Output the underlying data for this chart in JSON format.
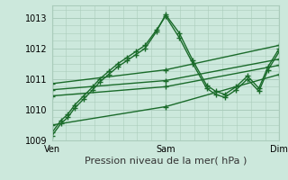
{
  "bg_color": "#cce8dc",
  "grid_color": "#aaccbb",
  "line_color": "#1a6b2a",
  "marker": "+",
  "markersize": 4,
  "linewidth": 1.0,
  "xlabel": "Pression niveau de la mer( hPa )",
  "xlabel_fontsize": 8,
  "tick_fontsize": 7,
  "ylim": [
    1009.0,
    1013.4
  ],
  "yticks": [
    1009,
    1010,
    1011,
    1012,
    1013
  ],
  "xtick_labels": [
    "Ven",
    "Sam",
    "Dim"
  ],
  "xtick_positions": [
    0.0,
    0.5,
    1.0
  ],
  "series": [
    {
      "x": [
        0.0,
        0.04,
        0.07,
        0.1,
        0.14,
        0.18,
        0.21,
        0.25,
        0.29,
        0.33,
        0.37,
        0.41,
        0.46,
        0.5,
        0.56,
        0.62,
        0.68,
        0.72,
        0.76,
        0.81,
        0.86,
        0.91,
        0.95,
        1.0
      ],
      "y": [
        1009.15,
        1009.55,
        1009.75,
        1010.05,
        1010.35,
        1010.65,
        1010.9,
        1011.15,
        1011.4,
        1011.6,
        1011.8,
        1012.0,
        1012.55,
        1013.1,
        1012.5,
        1011.6,
        1010.8,
        1010.6,
        1010.5,
        1010.75,
        1011.1,
        1010.7,
        1011.4,
        1012.0
      ]
    },
    {
      "x": [
        0.0,
        0.04,
        0.07,
        0.1,
        0.14,
        0.18,
        0.21,
        0.25,
        0.29,
        0.33,
        0.37,
        0.41,
        0.46,
        0.5,
        0.56,
        0.62,
        0.68,
        0.72,
        0.76,
        0.81,
        0.86,
        0.91,
        0.95,
        1.0
      ],
      "y": [
        1009.25,
        1009.65,
        1009.85,
        1010.15,
        1010.45,
        1010.75,
        1011.0,
        1011.25,
        1011.5,
        1011.7,
        1011.9,
        1012.1,
        1012.6,
        1013.05,
        1012.35,
        1011.5,
        1010.7,
        1010.5,
        1010.4,
        1010.65,
        1011.0,
        1010.6,
        1011.3,
        1011.9
      ]
    },
    {
      "x": [
        0.0,
        0.5,
        1.0
      ],
      "y": [
        1010.85,
        1011.3,
        1012.1
      ]
    },
    {
      "x": [
        0.0,
        0.5,
        1.0
      ],
      "y": [
        1010.65,
        1010.95,
        1011.65
      ]
    },
    {
      "x": [
        0.0,
        0.5,
        1.0
      ],
      "y": [
        1010.45,
        1010.75,
        1011.45
      ]
    },
    {
      "x": [
        0.0,
        0.5,
        1.0
      ],
      "y": [
        1009.5,
        1010.1,
        1011.15
      ]
    }
  ]
}
